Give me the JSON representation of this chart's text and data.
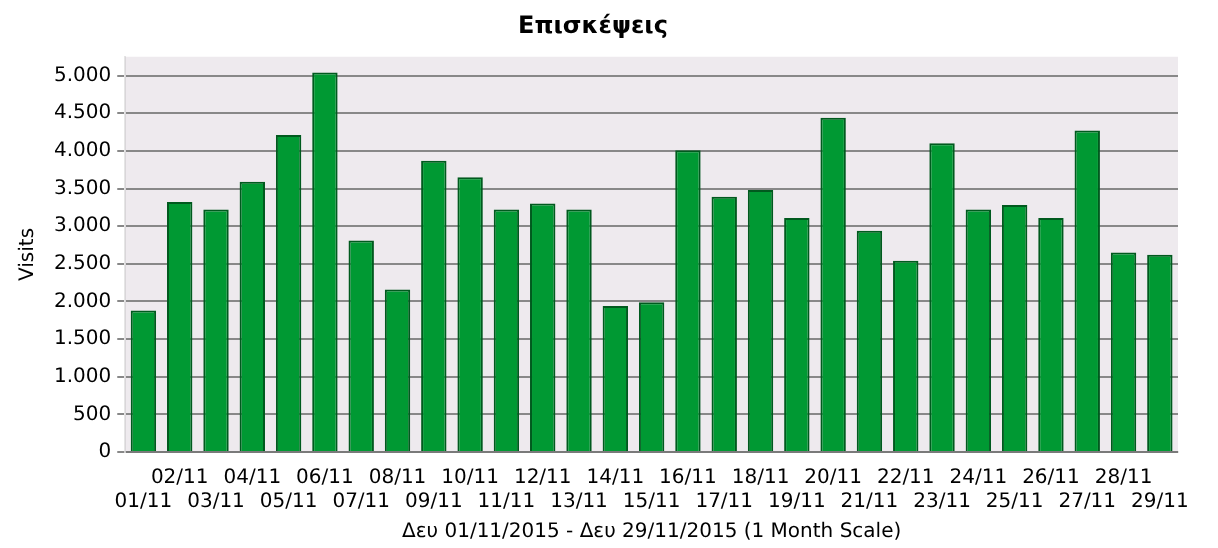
{
  "chart_data": {
    "type": "bar",
    "title": "Επισκέψεις",
    "xlabel": "Δευ 01/11/2015 - Δευ 29/11/2015 (1 Month Scale)",
    "ylabel": "Visits",
    "categories": [
      "01/11",
      "02/11",
      "03/11",
      "04/11",
      "05/11",
      "06/11",
      "07/11",
      "08/11",
      "09/11",
      "10/11",
      "11/11",
      "12/11",
      "13/11",
      "14/11",
      "15/11",
      "16/11",
      "17/11",
      "18/11",
      "19/11",
      "20/11",
      "21/11",
      "22/11",
      "23/11",
      "24/11",
      "25/11",
      "26/11",
      "27/11",
      "28/11",
      "29/11"
    ],
    "series": [
      {
        "color": "#009933",
        "values": [
          1880,
          3320,
          3220,
          3590,
          4210,
          5040,
          2810,
          2160,
          3870,
          3650,
          3220,
          3300,
          3220,
          1940,
          1990,
          4010,
          3390,
          3480,
          3110,
          4440,
          2940,
          2540,
          4100,
          3220,
          3280,
          3110,
          4270,
          2650,
          2620
        ]
      }
    ],
    "ylim": [
      0,
      5250
    ],
    "yticks": [
      0,
      500,
      {
        "value": 1000,
        "label": "1.000"
      },
      {
        "value": 1500,
        "label": "1.500"
      },
      {
        "value": 2000,
        "label": "2.000"
      },
      {
        "value": 2500,
        "label": "2.500"
      },
      {
        "value": 3000,
        "label": "3.000"
      },
      {
        "value": 3500,
        "label": "3.500"
      },
      {
        "value": 4000,
        "label": "4.000"
      },
      {
        "value": 4500,
        "label": "4.500"
      },
      {
        "value": 5000,
        "label": "5.000"
      }
    ],
    "grid": "y",
    "legend": false
  }
}
